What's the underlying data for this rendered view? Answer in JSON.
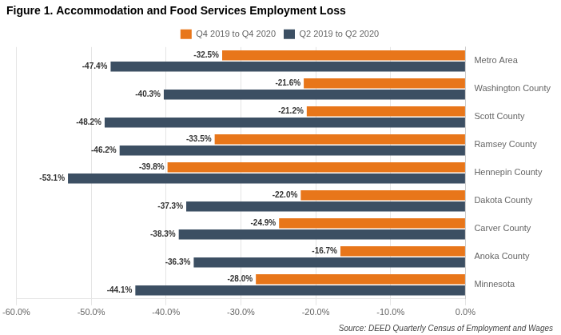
{
  "chart_data": {
    "type": "bar",
    "orientation": "horizontal",
    "title": "Figure 1. Accommodation and Food Services Employment Loss",
    "annotations": [
      "Source: DEED Quarterly Census of Employment and Wages"
    ],
    "categories": [
      "Metro Area",
      "Washington County",
      "Scott County",
      "Ramsey County",
      "Hennepin County",
      "Dakota County",
      "Carver County",
      "Anoka County",
      "Minnesota"
    ],
    "series": [
      {
        "name": "Q4 2019 to Q4 2020",
        "color": "#E8761A",
        "values": [
          -32.5,
          -21.6,
          -21.2,
          -33.5,
          -39.8,
          -22.0,
          -24.9,
          -16.7,
          -28.0
        ],
        "value_labels": [
          "-32.5%",
          "-21.6%",
          "-21.2%",
          "-33.5%",
          "-39.8%",
          "-22.0%",
          "-24.9%",
          "-16.7%",
          "-28.0%"
        ]
      },
      {
        "name": "Q2 2019 to Q2 2020",
        "color": "#3C4F63",
        "values": [
          -47.4,
          -40.3,
          -48.2,
          -46.2,
          -53.1,
          -37.3,
          -38.3,
          -36.3,
          -44.1
        ],
        "value_labels": [
          "-47.4%",
          "-40.3%",
          "-48.2%",
          "-46.2%",
          "-53.1%",
          "-37.3%",
          "-38.3%",
          "-36.3%",
          "-44.1%"
        ]
      }
    ],
    "xlim": [
      -60.0,
      0.0
    ],
    "xticks": [
      {
        "value": -60.0,
        "label": "-60.0%"
      },
      {
        "value": -50.0,
        "label": "-50.0%"
      },
      {
        "value": -40.0,
        "label": "-40.0%"
      },
      {
        "value": -30.0,
        "label": "-30.0%"
      },
      {
        "value": -20.0,
        "label": "-20.0%"
      },
      {
        "value": -10.0,
        "label": "-10.0%"
      },
      {
        "value": 0.0,
        "label": "0.0%"
      }
    ],
    "grid": true,
    "legend": "top",
    "data_labels": true
  }
}
